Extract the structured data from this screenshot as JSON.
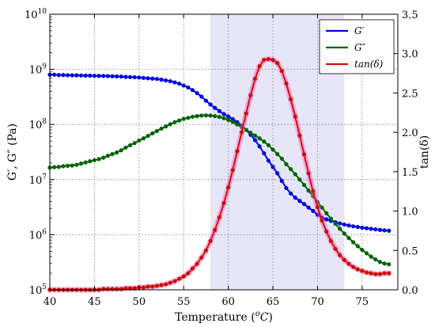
{
  "chart_data": {
    "type": "line",
    "xlabel": "Temperature (",
    "xlabel_super": "o",
    "xlabel_italic": "C",
    "xlabel_close": ")",
    "ylabel_left": "G′, G″ (Pa)",
    "ylabel_right": "tan(δ)",
    "xlim": [
      40,
      79
    ],
    "x_ticks": [
      40,
      45,
      50,
      55,
      60,
      65,
      70,
      75
    ],
    "ylim_left": [
      100000,
      10000000000
    ],
    "yscale_left": "log",
    "y_ticks_left": [
      {
        "base": "10",
        "exp": "5",
        "value": 100000
      },
      {
        "base": "10",
        "exp": "6",
        "value": 1000000
      },
      {
        "base": "10",
        "exp": "7",
        "value": 10000000
      },
      {
        "base": "10",
        "exp": "8",
        "value": 100000000
      },
      {
        "base": "10",
        "exp": "9",
        "value": 1000000000
      },
      {
        "base": "10",
        "exp": "10",
        "value": 10000000000
      }
    ],
    "ylim_right": [
      0,
      3.5
    ],
    "y_ticks_right": [
      "0.0",
      "0.5",
      "1.0",
      "1.5",
      "2.0",
      "2.5",
      "3.0",
      "3.5"
    ],
    "grid": true,
    "legend_position": "top-right",
    "shaded_region": {
      "x": [
        58,
        73
      ],
      "color": "#e6e6f8"
    },
    "x": [
      40,
      40.5,
      41,
      41.5,
      42,
      42.5,
      43,
      43.5,
      44,
      44.5,
      45,
      45.5,
      46,
      46.5,
      47,
      47.5,
      48,
      48.5,
      49,
      49.5,
      50,
      50.5,
      51,
      51.5,
      52,
      52.5,
      53,
      53.5,
      54,
      54.5,
      55,
      55.5,
      56,
      56.5,
      57,
      57.5,
      58,
      58.5,
      59,
      59.5,
      60,
      60.5,
      61,
      61.5,
      62,
      62.5,
      63,
      63.5,
      64,
      64.5,
      65,
      65.5,
      66,
      66.5,
      67,
      67.5,
      68,
      68.5,
      69,
      69.5,
      70,
      70.5,
      71,
      71.5,
      72,
      72.5,
      73,
      73.5,
      74,
      74.5,
      75,
      75.5,
      76,
      76.5,
      77,
      77.5,
      78
    ],
    "series": [
      {
        "name": "G′",
        "axis": "left",
        "color": "#0000e6",
        "markers": true,
        "values": [
          800000000,
          800000000,
          790000000,
          790000000,
          785000000,
          780000000,
          780000000,
          775000000,
          770000000,
          770000000,
          765000000,
          760000000,
          760000000,
          755000000,
          750000000,
          745000000,
          740000000,
          730000000,
          725000000,
          720000000,
          710000000,
          700000000,
          690000000,
          680000000,
          670000000,
          650000000,
          630000000,
          610000000,
          580000000,
          550000000,
          510000000,
          470000000,
          420000000,
          370000000,
          320000000,
          270000000,
          230000000,
          200000000,
          175000000,
          155000000,
          140000000,
          125000000,
          110000000,
          95000000,
          80000000,
          65000000,
          52000000,
          40000000,
          30000000,
          22000000,
          17000000,
          13000000,
          9500000,
          7000000,
          5600000,
          4700000,
          4100000,
          3600000,
          3100000,
          2700000,
          2300000,
          2050000,
          1900000,
          1780000,
          1680000,
          1600000,
          1530000,
          1470000,
          1420000,
          1380000,
          1340000,
          1310000,
          1280000,
          1250000,
          1220000,
          1200000,
          1180000
        ]
      },
      {
        "name": "G″",
        "axis": "left",
        "color": "#006400",
        "markers": true,
        "values": [
          16500000,
          16800000,
          17000000,
          17500000,
          17800000,
          18000000,
          18500000,
          19500000,
          20500000,
          21500000,
          22500000,
          23500000,
          25000000,
          27000000,
          29000000,
          31000000,
          34000000,
          38000000,
          42000000,
          46000000,
          51000000,
          56000000,
          62000000,
          69000000,
          76000000,
          84000000,
          92000000,
          101000000,
          110000000,
          118000000,
          126000000,
          132000000,
          138000000,
          142000000,
          145000000,
          146000000,
          145000000,
          142000000,
          137000000,
          130000000,
          121000000,
          111000000,
          100000000,
          90000000,
          80000000,
          71000000,
          63000000,
          56000000,
          49000000,
          42000000,
          35000000,
          29000000,
          24000000,
          19000000,
          15500000,
          12500000,
          10000000,
          8000000,
          6300000,
          5000000,
          3900000,
          3100000,
          2450000,
          1950000,
          1580000,
          1280000,
          1050000,
          870000,
          730000,
          620000,
          530000,
          460000,
          400000,
          355000,
          320000,
          300000,
          290000
        ]
      },
      {
        "name": "tan(δ)",
        "axis": "right",
        "color": "#cc1100",
        "glow_color": "#ff5fd0",
        "markers": true,
        "values": [
          0.0,
          0.0,
          0.0,
          0.0,
          0.0,
          0.0,
          0.0,
          0.0,
          0.0,
          0.0,
          0.0,
          0.0,
          0.01,
          0.01,
          0.01,
          0.01,
          0.01,
          0.02,
          0.02,
          0.02,
          0.03,
          0.03,
          0.04,
          0.04,
          0.05,
          0.06,
          0.07,
          0.09,
          0.11,
          0.14,
          0.17,
          0.21,
          0.27,
          0.33,
          0.41,
          0.5,
          0.62,
          0.76,
          0.92,
          1.1,
          1.3,
          1.52,
          1.76,
          2.0,
          2.24,
          2.47,
          2.68,
          2.84,
          2.92,
          2.93,
          2.92,
          2.88,
          2.78,
          2.62,
          2.42,
          2.2,
          1.96,
          1.72,
          1.48,
          1.25,
          1.05,
          0.88,
          0.74,
          0.62,
          0.52,
          0.44,
          0.38,
          0.33,
          0.29,
          0.26,
          0.24,
          0.22,
          0.21,
          0.2,
          0.2,
          0.21,
          0.21
        ]
      }
    ]
  }
}
